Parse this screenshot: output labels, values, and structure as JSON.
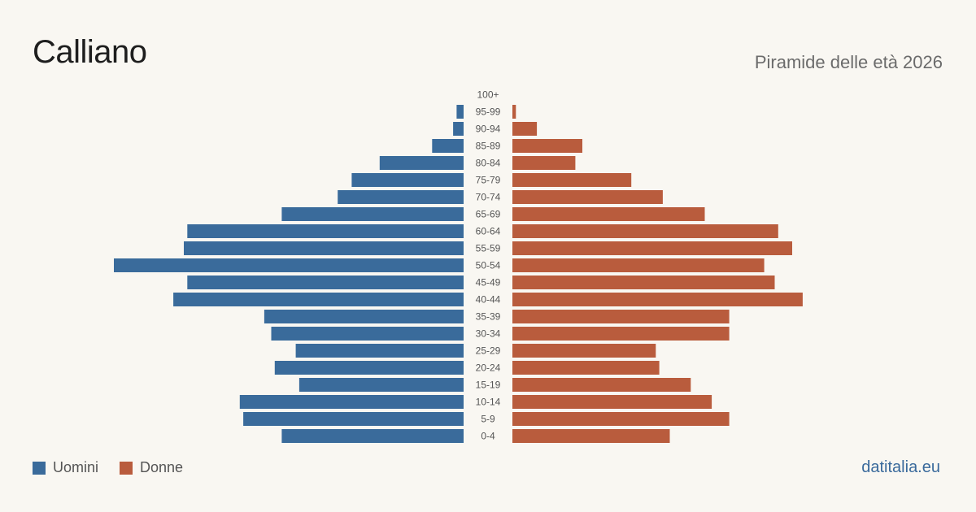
{
  "title": "Calliano",
  "subtitle": "Piramide delle età 2026",
  "brand": "datitalia.eu",
  "colors": {
    "men": "#3a6b9b",
    "women": "#b95c3d",
    "background": "#f9f7f2"
  },
  "chart_data": {
    "type": "bar",
    "orientation": "horizontal-population-pyramid",
    "categories": [
      "100+",
      "95-99",
      "90-94",
      "85-89",
      "80-84",
      "75-79",
      "70-74",
      "65-69",
      "60-64",
      "55-59",
      "50-54",
      "45-49",
      "40-44",
      "35-39",
      "30-34",
      "25-29",
      "20-24",
      "15-19",
      "10-14",
      "5-9",
      "0-4"
    ],
    "series": [
      {
        "name": "Uomini",
        "values": [
          0,
          2,
          3,
          9,
          24,
          32,
          36,
          52,
          79,
          80,
          100,
          79,
          83,
          57,
          55,
          48,
          54,
          47,
          64,
          63,
          52
        ]
      },
      {
        "name": "Donne",
        "values": [
          0,
          1,
          7,
          20,
          18,
          34,
          43,
          55,
          76,
          80,
          72,
          75,
          83,
          62,
          62,
          41,
          42,
          51,
          57,
          62,
          45
        ]
      }
    ],
    "legend": {
      "men": "Uomini",
      "women": "Donne",
      "position": "bottom-left"
    },
    "grid": false
  }
}
